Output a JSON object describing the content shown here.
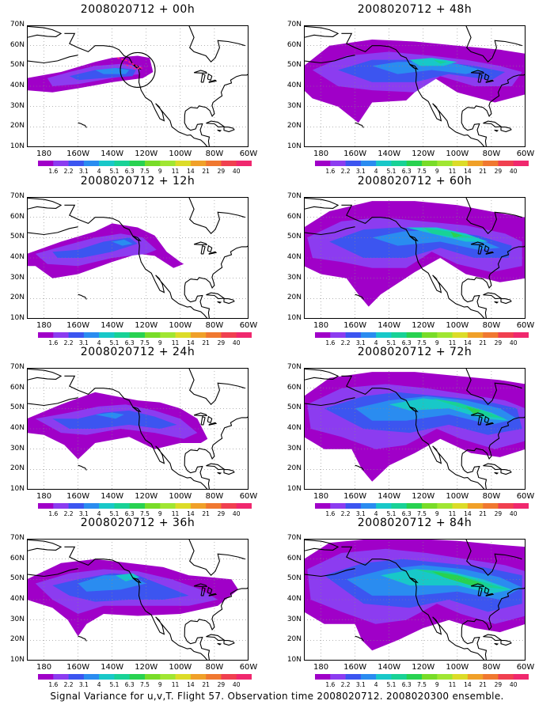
{
  "figure": {
    "caption": "Signal Variance for u,v,T. Flight 57. Observation time 2008020712. 2008020300 ensemble."
  },
  "colorbar": {
    "levels": [
      "1.6",
      "2.2",
      "3.1",
      "4",
      "5.1",
      "6.3",
      "7.5",
      "9",
      "11",
      "14",
      "21",
      "29",
      "40"
    ],
    "colors": [
      "#a000c8",
      "#8c3cf0",
      "#3c55f0",
      "#2a8cf0",
      "#18c8c8",
      "#18d296",
      "#28d250",
      "#78dc28",
      "#a0e632",
      "#dcdc28",
      "#f0a028",
      "#f07830",
      "#f04050",
      "#f0286e"
    ]
  },
  "axes": {
    "lat_labels": [
      "70N",
      "60N",
      "50N",
      "40N",
      "30N",
      "20N",
      "10N"
    ],
    "lon_labels": [
      "180",
      "160W",
      "140W",
      "120W",
      "100W",
      "80W",
      "60W"
    ]
  },
  "panels": [
    {
      "title": "2008020712 + 00h",
      "forecast_hour": 0,
      "max_level": 4,
      "marker": "circle"
    },
    {
      "title": "2008020712 + 12h",
      "forecast_hour": 12,
      "max_level": 4
    },
    {
      "title": "2008020712 + 24h",
      "forecast_hour": 24,
      "max_level": 4
    },
    {
      "title": "2008020712 + 36h",
      "forecast_hour": 36,
      "max_level": 5
    },
    {
      "title": "2008020712 + 48h",
      "forecast_hour": 48,
      "max_level": 6
    },
    {
      "title": "2008020712 + 60h",
      "forecast_hour": 60,
      "max_level": 7
    },
    {
      "title": "2008020712 + 72h",
      "forecast_hour": 72,
      "max_level": 7
    },
    {
      "title": "2008020712 + 84h",
      "forecast_hour": 84,
      "max_level": 7
    }
  ]
}
